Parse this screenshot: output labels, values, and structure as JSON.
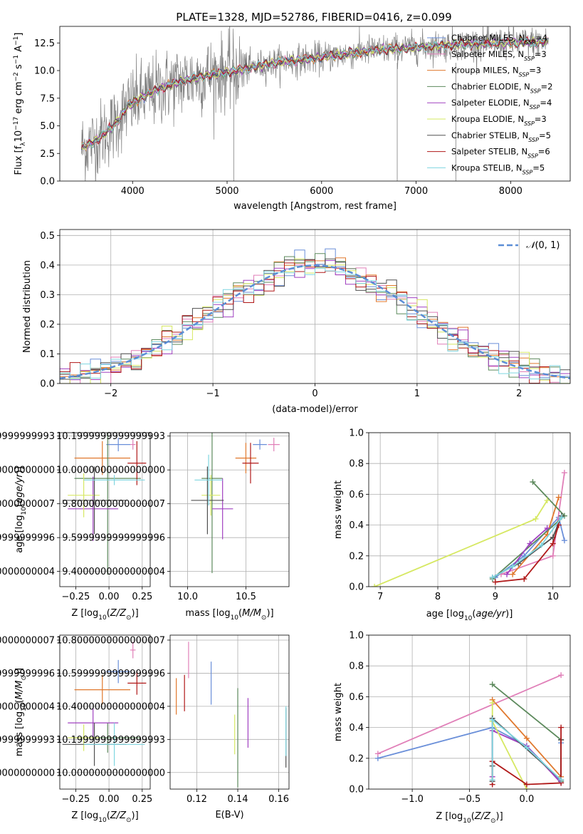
{
  "title": "PLATE=1328, MJD=52786, FIBERID=0416, z=0.099",
  "colors": {
    "Chabrier MILES": "#6a8fd9",
    "Salpeter MILES": "#e07fb8",
    "Kroupa MILES": "#e0782d",
    "Chabrier ELODIE": "#5d8a5d",
    "Salpeter ELODIE": "#a040c0",
    "Kroupa ELODIE": "#d6e862",
    "Chabrier STELIB": "#505050",
    "Salpeter STELIB": "#b01818",
    "Kroupa STELIB": "#7fd6e0",
    "data": "#808080",
    "normal": "#5b8ed6"
  },
  "chart_data": [
    {
      "id": "spectrum",
      "type": "line",
      "xlabel": "wavelength [Angstrom, rest frame]",
      "ylabel": "Flux [f_λ10^-17 erg cm^-2 s^-1 A^-1]",
      "xlim": [
        3230,
        8630
      ],
      "ylim": [
        0,
        14
      ],
      "xticks": [
        4000,
        5000,
        6000,
        7000,
        8000
      ],
      "yticks": [
        0.0,
        2.5,
        5.0,
        7.5,
        10.0,
        12.5
      ],
      "legend": {
        "loc": "upper right",
        "entries": [
          {
            "model": "Chabrier MILES",
            "n": 4
          },
          {
            "model": "Salpeter MILES",
            "n": 3
          },
          {
            "model": "Kroupa MILES",
            "n": 3
          },
          {
            "model": "Chabrier ELODIE",
            "n": 2
          },
          {
            "model": "Salpeter ELODIE",
            "n": 4
          },
          {
            "model": "Kroupa ELODIE",
            "n": 3
          },
          {
            "model": "Chabrier STELIB",
            "n": 5
          },
          {
            "model": "Salpeter STELIB",
            "n": 6
          },
          {
            "model": "Kroupa STELIB",
            "n": 5
          }
        ]
      },
      "continuum": {
        "x": [
          3460,
          3600,
          3800,
          3950,
          4100,
          4300,
          4500,
          4800,
          5100,
          5500,
          6000,
          6500,
          7000,
          7500,
          8000,
          8400
        ],
        "y": [
          3.0,
          3.6,
          5.0,
          6.8,
          7.6,
          8.4,
          9.0,
          9.6,
          10.0,
          10.7,
          11.2,
          11.8,
          12.1,
          12.4,
          12.5,
          12.6
        ]
      },
      "spikes": [
        {
          "x": 5070,
          "y": 0
        },
        {
          "x": 6800,
          "y": 0
        },
        {
          "x": 7420,
          "y": 0
        }
      ]
    },
    {
      "id": "residuals",
      "type": "histogram",
      "xlabel": "(data-model)/error",
      "ylabel": "Normed distribution",
      "xlim": [
        -2.5,
        2.5
      ],
      "ylim": [
        0,
        0.52
      ],
      "xticks": [
        -2,
        -1,
        0,
        1,
        2
      ],
      "yticks": [
        0.0,
        0.1,
        0.2,
        0.3,
        0.4,
        0.5
      ],
      "bin_width": 0.1,
      "legend_label": "N(0,1)",
      "legend_loc": "upper right",
      "models": [
        "Chabrier MILES",
        "Salpeter MILES",
        "Kroupa MILES",
        "Chabrier ELODIE",
        "Salpeter ELODIE",
        "Kroupa ELODIE",
        "Chabrier STELIB",
        "Salpeter STELIB",
        "Kroupa STELIB"
      ]
    },
    {
      "id": "age_vs_Z",
      "type": "errorbar",
      "xlabel": "Z [log10(Z/Z⊙)]",
      "ylabel": "age [log10(age/yr)]",
      "xlim": [
        -0.37,
        0.31
      ],
      "ylim": [
        9.31,
        10.22
      ],
      "xticks": [
        -0.25,
        0.0,
        0.25
      ],
      "xticklabels": [
        "−0.25",
        "0.00",
        "0.25"
      ],
      "yticks": [
        9.4,
        9.6,
        9.8,
        10.0,
        10.2
      ],
      "points": [
        {
          "model": "Chabrier MILES",
          "x": 0.07,
          "xerr": 0.09,
          "y": 10.15,
          "yerr": 0.04
        },
        {
          "model": "Salpeter MILES",
          "x": 0.18,
          "xerr": 0.02,
          "y": 10.15,
          "yerr": 0.03
        },
        {
          "model": "Kroupa MILES",
          "x": -0.05,
          "xerr": 0.21,
          "y": 10.07,
          "yerr": 0.1
        },
        {
          "model": "Chabrier ELODIE",
          "x": -0.01,
          "xerr": 0.25,
          "y": 9.95,
          "yerr": 0.57
        },
        {
          "model": "Salpeter ELODIE",
          "x": -0.12,
          "xerr": 0.19,
          "y": 9.77,
          "yerr": 0.19
        },
        {
          "model": "Kroupa ELODIE",
          "x": -0.19,
          "xerr": 0.12,
          "y": 9.85,
          "yerr": 0.13
        },
        {
          "model": "Chabrier STELIB",
          "x": -0.11,
          "xerr": 0.24,
          "y": 9.82,
          "yerr": 0.2
        },
        {
          "model": "Salpeter STELIB",
          "x": 0.21,
          "xerr": 0.07,
          "y": 10.04,
          "yerr": 0.13
        },
        {
          "model": "Kroupa STELIB",
          "x": 0.04,
          "xerr": 0.23,
          "y": 9.94,
          "yerr": 0.03
        }
      ]
    },
    {
      "id": "age_vs_mass",
      "type": "errorbar",
      "xlabel": "mass [log10(M/M⊙)]",
      "ylabel": "",
      "xlim": [
        9.85,
        10.87
      ],
      "ylim": [
        9.31,
        10.22
      ],
      "xticks": [
        10.0,
        10.5
      ],
      "xticklabels": [
        "10.0",
        "10.5"
      ],
      "yticks": [
        9.4,
        9.6,
        9.8,
        10.0,
        10.2
      ],
      "points": [
        {
          "model": "Chabrier MILES",
          "x": 10.62,
          "xerr": 0.06,
          "y": 10.15,
          "yerr": 0.03
        },
        {
          "model": "Salpeter MILES",
          "x": 10.74,
          "xerr": 0.05,
          "y": 10.15,
          "yerr": 0.04
        },
        {
          "model": "Kroupa MILES",
          "x": 10.5,
          "xerr": 0.09,
          "y": 10.07,
          "yerr": 0.09
        },
        {
          "model": "Chabrier ELODIE",
          "x": 10.21,
          "xerr": 0.09,
          "y": 9.95,
          "yerr": 0.56
        },
        {
          "model": "Salpeter ELODIE",
          "x": 10.3,
          "xerr": 0.09,
          "y": 9.77,
          "yerr": 0.18
        },
        {
          "model": "Kroupa ELODIE",
          "x": 10.2,
          "xerr": 0.08,
          "y": 9.85,
          "yerr": 0.12
        },
        {
          "model": "Chabrier STELIB",
          "x": 10.17,
          "xerr": 0.14,
          "y": 9.82,
          "yerr": 0.2
        },
        {
          "model": "Salpeter STELIB",
          "x": 10.54,
          "xerr": 0.07,
          "y": 10.04,
          "yerr": 0.12
        },
        {
          "model": "Kroupa STELIB",
          "x": 10.18,
          "xerr": 0.12,
          "y": 9.94,
          "yerr": 0.15
        }
      ]
    },
    {
      "id": "weight_vs_age",
      "type": "line",
      "xlabel": "age [log10(age/yr)]",
      "ylabel": "mass weight",
      "xlim": [
        6.8,
        10.3
      ],
      "ylim": [
        0,
        1.0
      ],
      "xticks": [
        7,
        8,
        9,
        10
      ],
      "yticks": [
        0.0,
        0.2,
        0.4,
        0.6,
        0.8,
        1.0
      ],
      "series": [
        {
          "model": "Chabrier MILES",
          "x": [
            9.0,
            9.5,
            10.1,
            10.2
          ],
          "y": [
            0.06,
            0.2,
            0.45,
            0.3
          ]
        },
        {
          "model": "Salpeter MILES",
          "x": [
            9.1,
            10.0,
            10.2
          ],
          "y": [
            0.08,
            0.2,
            0.74
          ]
        },
        {
          "model": "Kroupa MILES",
          "x": [
            9.3,
            9.9,
            10.1
          ],
          "y": [
            0.08,
            0.34,
            0.58
          ]
        },
        {
          "model": "Chabrier ELODIE",
          "x": [
            8.95,
            10.2,
            9.65
          ],
          "y": [
            0.05,
            0.46,
            0.68
          ]
        },
        {
          "model": "Salpeter ELODIE",
          "x": [
            9.2,
            9.6,
            9.9
          ],
          "y": [
            0.08,
            0.28,
            0.38
          ]
        },
        {
          "model": "Kroupa ELODIE",
          "x": [
            6.9,
            9.7,
            9.9
          ],
          "y": [
            0.0,
            0.44,
            0.56
          ]
        },
        {
          "model": "Chabrier STELIB",
          "x": [
            8.95,
            9.4,
            10.0,
            10.15
          ],
          "y": [
            0.06,
            0.15,
            0.32,
            0.46
          ]
        },
        {
          "model": "Salpeter STELIB",
          "x": [
            9.0,
            9.5,
            10.0,
            10.1
          ],
          "y": [
            0.03,
            0.05,
            0.28,
            0.4
          ]
        },
        {
          "model": "Kroupa STELIB",
          "x": [
            8.95,
            9.3,
            9.8,
            10.15
          ],
          "y": [
            0.06,
            0.13,
            0.27,
            0.45
          ]
        }
      ]
    },
    {
      "id": "mass_vs_Z",
      "type": "errorbar",
      "xlabel": "Z [log10(Z/Z⊙)]",
      "ylabel": "mass [log10(M/M⊙)]",
      "xlim": [
        -0.37,
        0.31
      ],
      "ylim": [
        9.9,
        10.83
      ],
      "xticks": [
        -0.25,
        0.0,
        0.25
      ],
      "xticklabels": [
        "−0.25",
        "0.00",
        "0.25"
      ],
      "yticks": [
        10.0,
        10.2,
        10.4,
        10.6,
        10.8
      ],
      "points": [
        {
          "model": "Chabrier MILES",
          "x": 0.07,
          "xerr": 0.09,
          "y": 10.61,
          "yerr": 0.07
        },
        {
          "model": "Salpeter MILES",
          "x": 0.18,
          "xerr": 0.02,
          "y": 10.74,
          "yerr": 0.05
        },
        {
          "model": "Kroupa MILES",
          "x": -0.05,
          "xerr": 0.21,
          "y": 10.5,
          "yerr": 0.09
        },
        {
          "model": "Chabrier ELODIE",
          "x": -0.01,
          "xerr": 0.25,
          "y": 10.21,
          "yerr": 0.09
        },
        {
          "model": "Salpeter ELODIE",
          "x": -0.12,
          "xerr": 0.19,
          "y": 10.3,
          "yerr": 0.09
        },
        {
          "model": "Kroupa ELODIE",
          "x": -0.19,
          "xerr": 0.12,
          "y": 10.21,
          "yerr": 0.08
        },
        {
          "model": "Chabrier STELIB",
          "x": -0.11,
          "xerr": 0.24,
          "y": 10.17,
          "yerr": 0.13
        },
        {
          "model": "Salpeter STELIB",
          "x": 0.21,
          "xerr": 0.07,
          "y": 10.54,
          "yerr": 0.07
        },
        {
          "model": "Kroupa STELIB",
          "x": 0.04,
          "xerr": 0.23,
          "y": 10.17,
          "yerr": 0.13
        }
      ]
    },
    {
      "id": "mass_vs_ebv",
      "type": "errorbar",
      "xlabel": "E(B-V)",
      "ylabel": "",
      "xlim": [
        0.107,
        0.165
      ],
      "ylim": [
        9.9,
        10.83
      ],
      "xticks": [
        0.12,
        0.14,
        0.16
      ],
      "xticklabels": [
        "0.12",
        "0.14",
        "0.16"
      ],
      "yticks": [
        10.0,
        10.2,
        10.4,
        10.6,
        10.8
      ],
      "points": [
        {
          "model": "Chabrier MILES",
          "x": 0.127,
          "xerr": 0,
          "y": 10.54,
          "yerr": 0.13
        },
        {
          "model": "Salpeter MILES",
          "x": 0.116,
          "xerr": 0,
          "y": 10.68,
          "yerr": 0.11
        },
        {
          "model": "Kroupa MILES",
          "x": 0.11,
          "xerr": 0,
          "y": 10.46,
          "yerr": 0.11
        },
        {
          "model": "Chabrier ELODIE",
          "x": 0.14,
          "xerr": 0,
          "y": 10.21,
          "yerr": 0.3
        },
        {
          "model": "Salpeter ELODIE",
          "x": 0.145,
          "xerr": 0,
          "y": 10.3,
          "yerr": 0.15
        },
        {
          "model": "Kroupa ELODIE",
          "x": 0.1385,
          "xerr": 0,
          "y": 10.23,
          "yerr": 0.12
        },
        {
          "model": "Chabrier STELIB",
          "x": 0.1635,
          "xerr": 0,
          "y": 10.21,
          "yerr": 0.18
        },
        {
          "model": "Salpeter STELIB",
          "x": 0.114,
          "xerr": 0,
          "y": 10.48,
          "yerr": 0.11
        },
        {
          "model": "Kroupa STELIB",
          "x": 0.1635,
          "xerr": 0,
          "y": 10.25,
          "yerr": 0.15
        }
      ]
    },
    {
      "id": "weight_vs_Z",
      "type": "line",
      "xlabel": "Z [log10(Z/Z⊙)]",
      "ylabel": "mass weight",
      "xlim": [
        -1.38,
        0.38
      ],
      "ylim": [
        0,
        1.0
      ],
      "xticks": [
        -1.0,
        -0.5,
        0.0
      ],
      "xticklabels": [
        "−1.0",
        "−0.5",
        "0.0"
      ],
      "yticks": [
        0.0,
        0.2,
        0.4,
        0.6,
        0.8,
        1.0
      ],
      "series": [
        {
          "model": "Chabrier MILES",
          "x": [
            -1.3,
            -0.3,
            0.0,
            0.3,
            0.3
          ],
          "y": [
            0.2,
            0.4,
            0.28,
            0.05,
            0.3
          ]
        },
        {
          "model": "Salpeter MILES",
          "x": [
            -1.3,
            0.3
          ],
          "y": [
            0.23,
            0.74
          ]
        },
        {
          "model": "Kroupa MILES",
          "x": [
            -0.3,
            0.0,
            0.3
          ],
          "y": [
            0.58,
            0.33,
            0.08
          ]
        },
        {
          "model": "Chabrier ELODIE",
          "x": [
            -0.3,
            0.3,
            0.3
          ],
          "y": [
            0.68,
            0.32,
            0.05
          ]
        },
        {
          "model": "Salpeter ELODIE",
          "x": [
            -0.3,
            -0.3,
            0.0,
            0.3
          ],
          "y": [
            0.08,
            0.38,
            0.28,
            0.04
          ]
        },
        {
          "model": "Kroupa ELODIE",
          "x": [
            -0.3,
            -0.3,
            0.0
          ],
          "y": [
            0.56,
            0.44,
            0.0
          ]
        },
        {
          "model": "Chabrier STELIB",
          "x": [
            -0.3,
            -0.3,
            -0.3,
            0.3,
            0.3
          ],
          "y": [
            0.05,
            0.15,
            0.46,
            0.06,
            0.32
          ]
        },
        {
          "model": "Salpeter STELIB",
          "x": [
            -0.3,
            -0.3,
            0.0,
            0.3,
            0.3
          ],
          "y": [
            0.03,
            0.18,
            0.03,
            0.04,
            0.4
          ]
        },
        {
          "model": "Kroupa STELIB",
          "x": [
            -0.3,
            -0.3,
            0.0,
            0.3
          ],
          "y": [
            0.06,
            0.45,
            0.27,
            0.06
          ]
        }
      ]
    }
  ]
}
